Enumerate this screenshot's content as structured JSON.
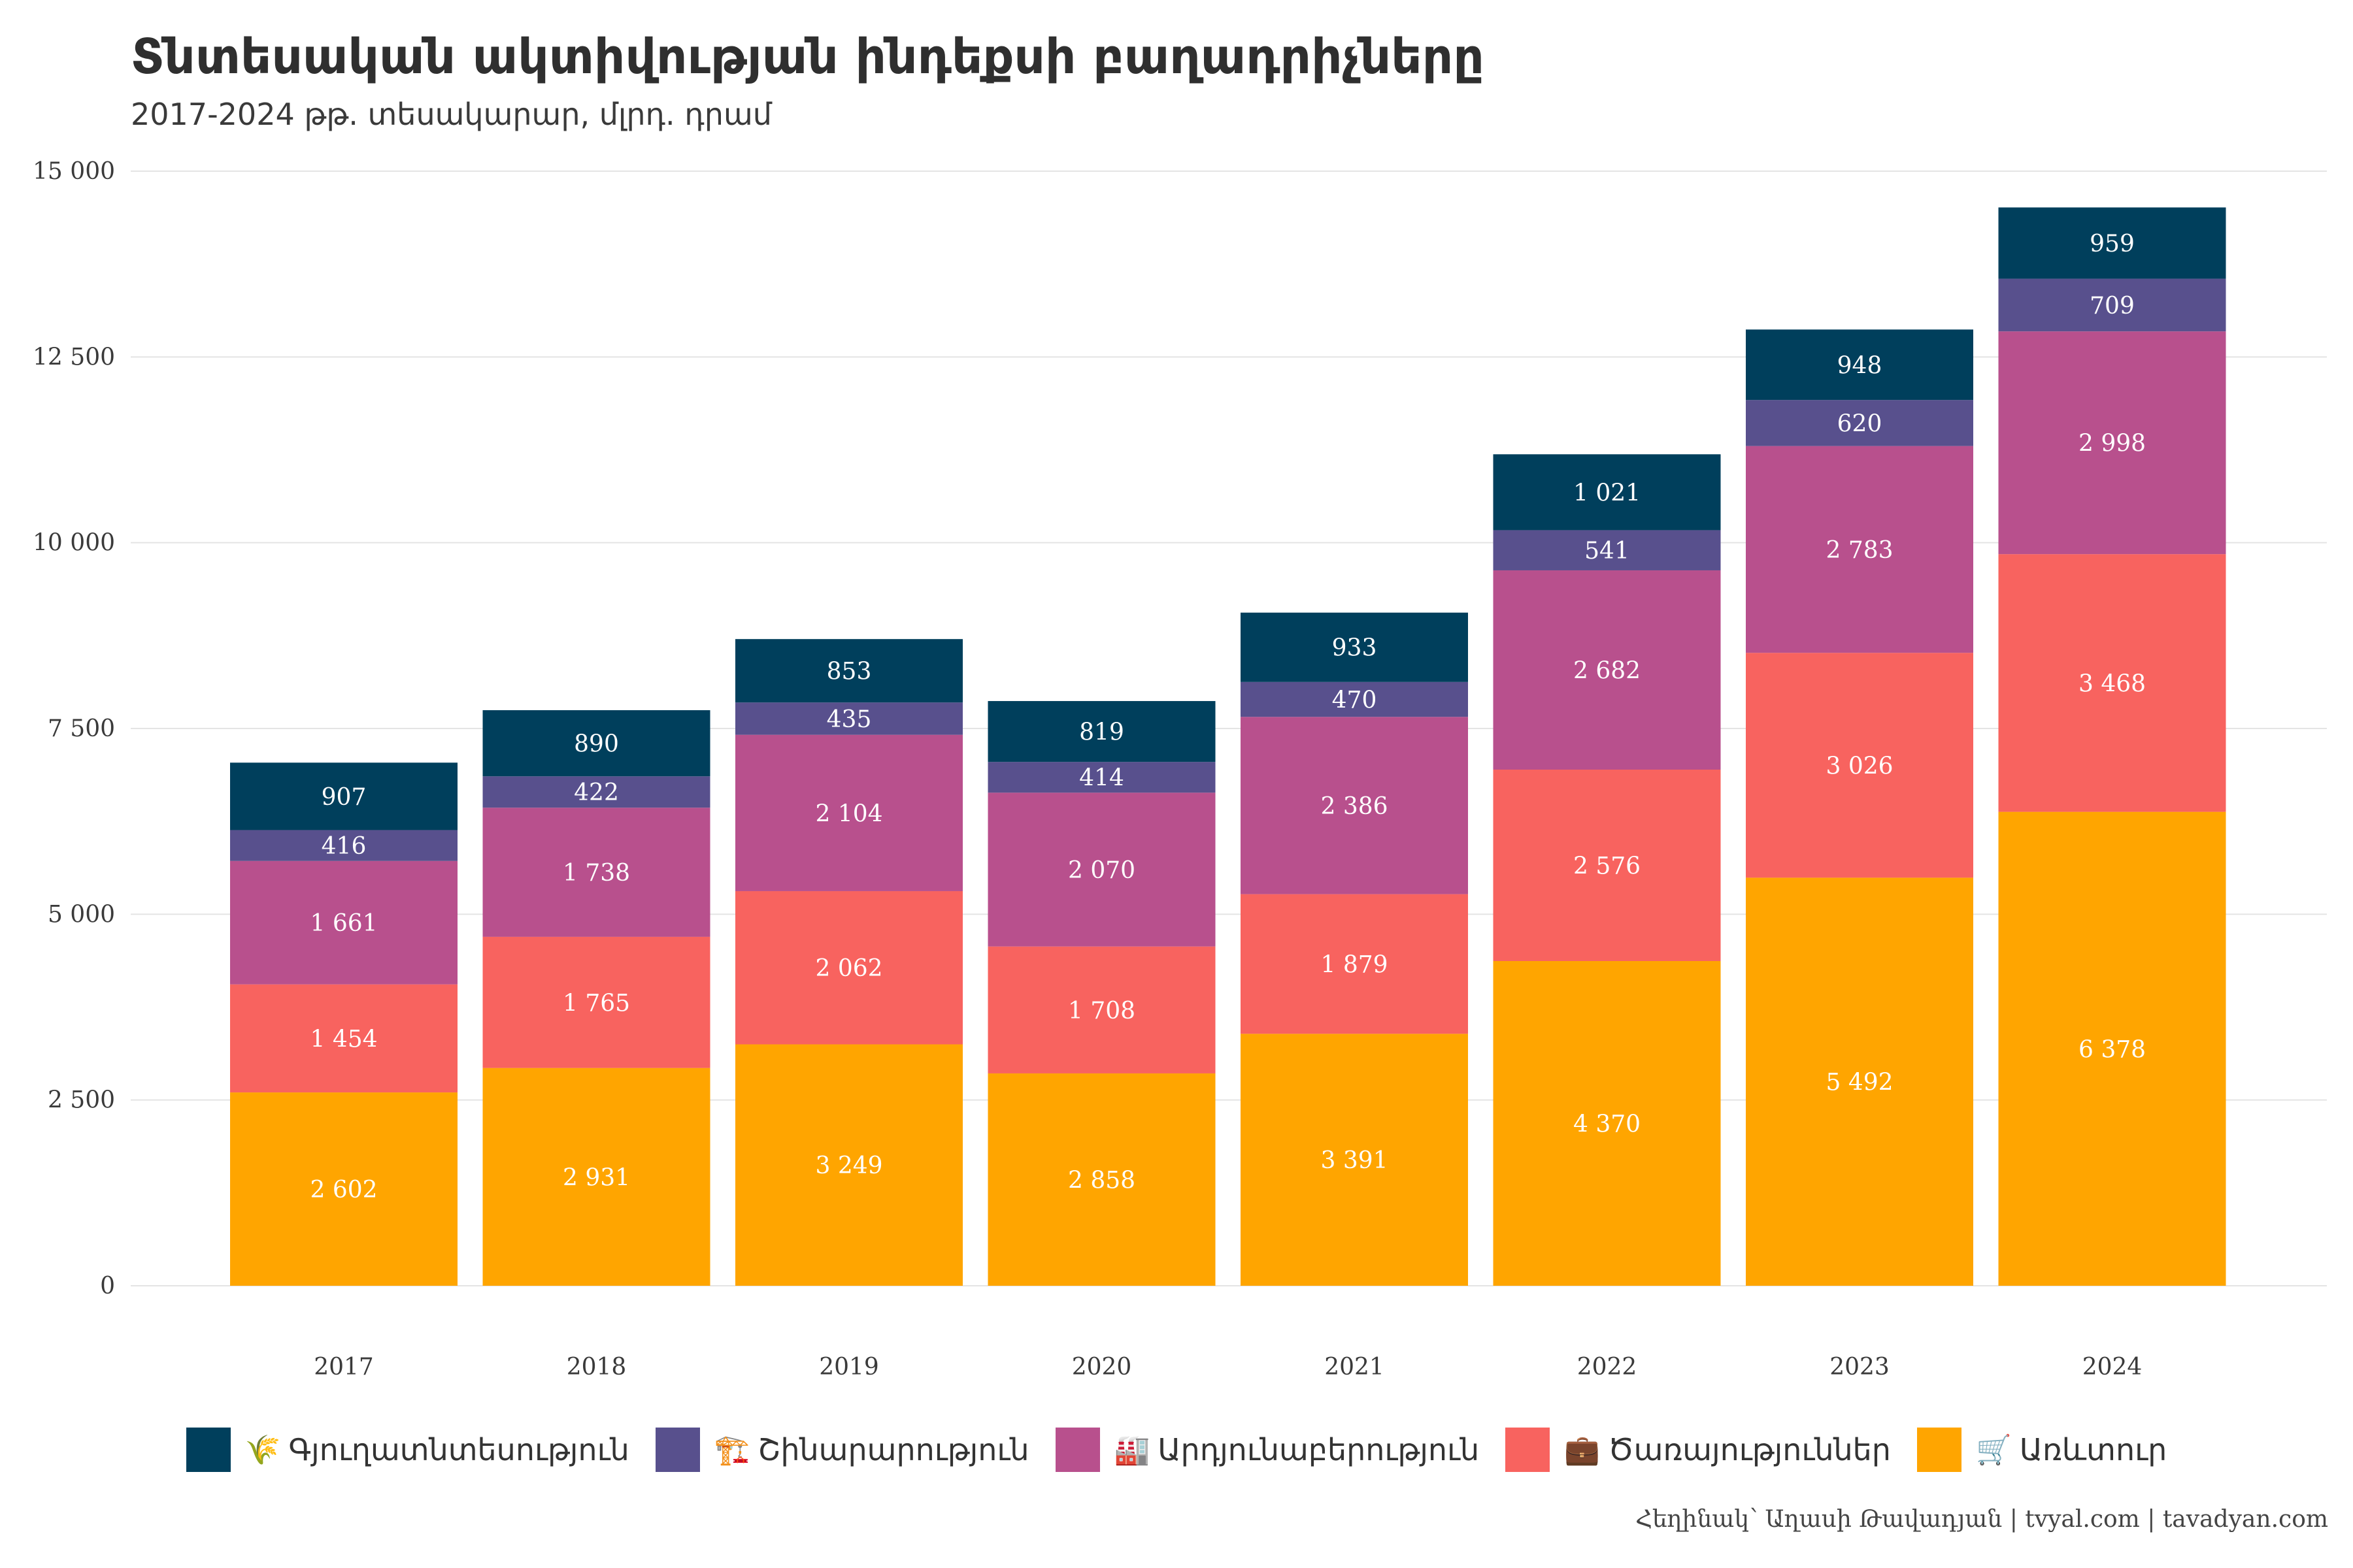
{
  "chart_data": {
    "type": "bar",
    "stacked": true,
    "title": "Տնտեսական ակտիվության ինդեքսի բաղադրիչները",
    "subtitle": "2017-2024 թթ. տեսակարար, մլրդ. դրամ",
    "categories": [
      "2017",
      "2018",
      "2019",
      "2020",
      "2021",
      "2022",
      "2023",
      "2024"
    ],
    "series": [
      {
        "name": "Առևտուր",
        "icon": "cart-icon",
        "emoji": "🛒",
        "color": "#FFA500",
        "values": [
          2602,
          2931,
          3249,
          2858,
          3391,
          4370,
          5492,
          6378
        ],
        "labels": [
          "2 602",
          "2 931",
          "3 249",
          "2 858",
          "3 391",
          "4 370",
          "5 492",
          "6 378"
        ]
      },
      {
        "name": "Ծառայություններ",
        "icon": "briefcase-icon",
        "emoji": "💼",
        "color": "#F8635F",
        "values": [
          1454,
          1765,
          2062,
          1708,
          1879,
          2576,
          3026,
          3468
        ],
        "labels": [
          "1 454",
          "1 765",
          "2 062",
          "1 708",
          "1 879",
          "2 576",
          "3 026",
          "3 468"
        ]
      },
      {
        "name": "Արդյունաբերություն",
        "icon": "factory-icon",
        "emoji": "🏭",
        "color": "#B8508D",
        "values": [
          1661,
          1738,
          2104,
          2070,
          2386,
          2682,
          2783,
          2998
        ],
        "labels": [
          "1 661",
          "1 738",
          "2 104",
          "2 070",
          "2 386",
          "2 682",
          "2 783",
          "2 998"
        ]
      },
      {
        "name": "Շինարարություն",
        "icon": "crane-icon",
        "emoji": "🏗️",
        "color": "#58508D",
        "values": [
          416,
          422,
          435,
          414,
          470,
          541,
          620,
          709
        ],
        "labels": [
          "416",
          "422",
          "435",
          "414",
          "470",
          "541",
          "620",
          "709"
        ]
      },
      {
        "name": "Գյուղատնտեսություն",
        "icon": "wheat-icon",
        "emoji": "🌾",
        "color": "#003F5C",
        "values": [
          907,
          890,
          853,
          819,
          933,
          1021,
          948,
          959
        ],
        "labels": [
          "907",
          "890",
          "853",
          "819",
          "933",
          "1 021",
          "948",
          "959"
        ]
      }
    ],
    "legend_order": [
      4,
      3,
      2,
      1,
      0
    ],
    "ylim": [
      0,
      15000
    ],
    "yticks": [
      0,
      2500,
      5000,
      7500,
      10000,
      12500,
      15000
    ],
    "ytick_labels": [
      "0",
      "2 500",
      "5 000",
      "7 500",
      "10 000",
      "12 500",
      "15 000"
    ],
    "grid": "horizontal",
    "legend_position": "bottom",
    "caption": "Հեղինակ՝ Աղասի Թավադյան   |   tvyal.com   |   tavadyan.com"
  }
}
